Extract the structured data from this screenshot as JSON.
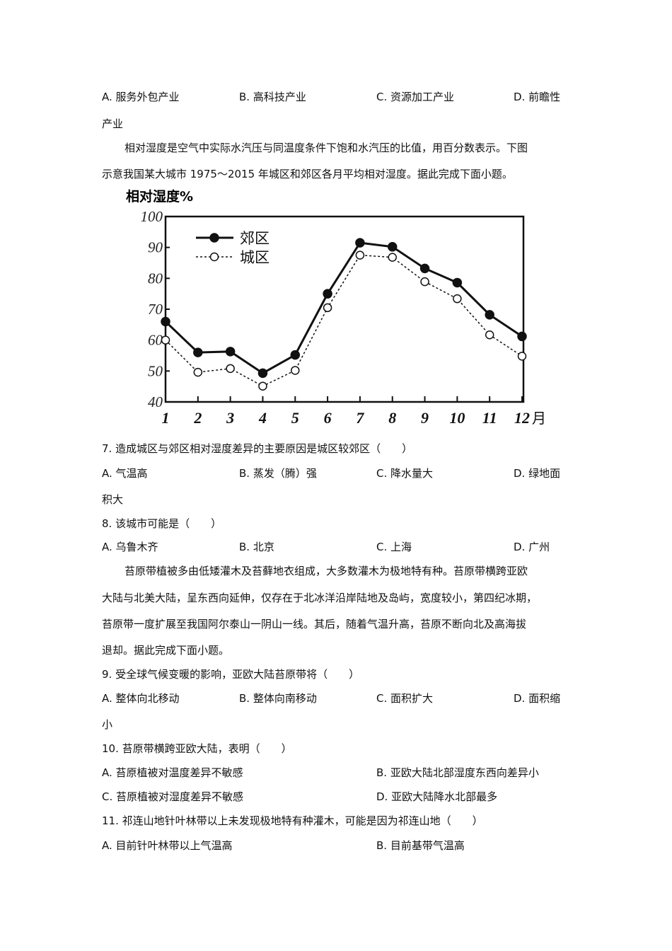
{
  "q6_options": {
    "a": "A. 服务外包产业",
    "b": "B. 高科技产业",
    "c": "C. 资源加工产业",
    "d": "D. 前瞻性",
    "d_cont": "产业"
  },
  "intro1": {
    "line1": "相对湿度是空气中实际水汽压与同温度条件下饱和水汽压的比值，用百分数表示。下图",
    "line2": "示意我国某大城市 1975～2015 年城区和郊区各月平均相对湿度。据此完成下面小题。"
  },
  "chart_data": {
    "type": "line",
    "ylabel": "相对湿度%",
    "xlabel": "月",
    "ylim": [
      40,
      100
    ],
    "yticks": [
      "100",
      "90",
      "80",
      "70",
      "60",
      "50",
      "40"
    ],
    "categories": [
      "1",
      "2",
      "3",
      "4",
      "5",
      "6",
      "7",
      "8",
      "9",
      "10",
      "11",
      "12"
    ],
    "x_unit": "月",
    "legend_position": "top-left",
    "series": [
      {
        "name": "郊区",
        "style": "solid, filled dots",
        "values": [
          66,
          56,
          56.3,
          49.3,
          55.2,
          75,
          91.5,
          90.2,
          83.2,
          78.6,
          68.2,
          61.2
        ]
      },
      {
        "name": "城区",
        "style": "dotted, open circles",
        "values": [
          60,
          49.6,
          50.8,
          45.1,
          50.2,
          70.5,
          87.5,
          86.8,
          78.9,
          73.4,
          61.7,
          54.8
        ]
      }
    ]
  },
  "q7": {
    "stem": "7. 造成城区与郊区相对湿度差异的主要原因是城区较郊区（　　）",
    "a": "A. 气温高",
    "b": "B. 蒸发（腾）强",
    "c": "C. 降水量大",
    "d": "D. 绿地面",
    "d_cont": "积大"
  },
  "q8": {
    "stem": "8. 该城市可能是（　　）",
    "a": "A. 乌鲁木齐",
    "b": "B. 北京",
    "c": "C. 上海",
    "d": "D. 广州"
  },
  "intro2": {
    "line1": "苔原带植被多由低矮灌木及苔藓地衣组成，大多数灌木为极地特有种。苔原带横跨亚欧",
    "line2": "大陆与北美大陆，呈东西向延伸，仅存在于北冰洋沿岸陆地及岛屿，宽度较小，第四纪冰期，",
    "line3": "苔原带一度扩展至我国阿尔泰山一阴山一线。其后，随着气温升高，苔原不断向北及高海拔",
    "line4": "退却。据此完成下面小题。"
  },
  "q9": {
    "stem": "9. 受全球气候变暖的影响，亚欧大陆苔原带将（　　）",
    "a": "A. 整体向北移动",
    "b": "B. 整体向南移动",
    "c": "C. 面积扩大",
    "d": "D. 面积缩",
    "d_cont": "小"
  },
  "q10": {
    "stem": "10. 苔原带横跨亚欧大陆，表明（　　）",
    "a": "A. 苔原植被对温度差异不敏感",
    "b": "B. 亚欧大陆北部湿度东西向差异小",
    "c": "C. 苔原植被对湿度差异不敏感",
    "d": "D. 亚欧大陆降水北部最多"
  },
  "q11": {
    "stem": "11. 祁连山地针叶林带以上未发现极地特有种灌木，可能是因为祁连山地（　　）",
    "a": "A. 目前针叶林带以上气温高",
    "b": "B. 目前基带气温高"
  }
}
